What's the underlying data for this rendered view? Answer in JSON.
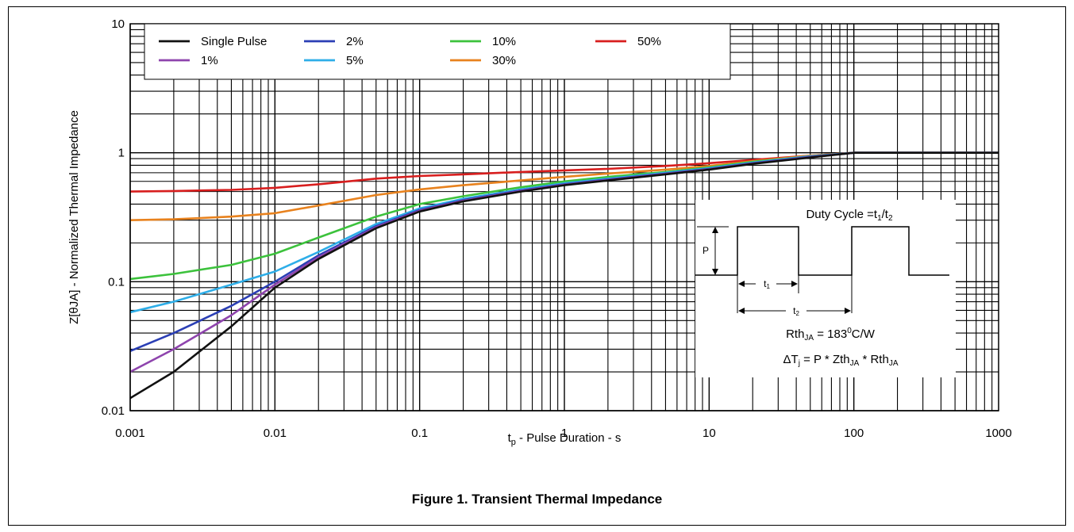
{
  "caption": "Figure 1.  Transient Thermal Impedance",
  "chart_data": {
    "type": "line",
    "x_scale": "log",
    "y_scale": "log",
    "xlim": [
      0.001,
      1000
    ],
    "ylim": [
      0.01,
      10
    ],
    "x_ticks": [
      "0.001",
      "0.01",
      "0.1",
      "1",
      "10",
      "100",
      "1000"
    ],
    "y_ticks": [
      "0.01",
      "0.1",
      "1",
      "10"
    ],
    "xlabel_main": "t",
    "xlabel_sub": "p",
    "xlabel_rest": " - Pulse Duration - s",
    "ylabel": "Z[θJA] - Normalized Thermal Impedance",
    "grid": true,
    "legend_position": "top-left",
    "series": [
      {
        "name": "Single Pulse",
        "color": "#111111",
        "x": [
          0.001,
          0.002,
          0.005,
          0.01,
          0.02,
          0.05,
          0.1,
          0.2,
          0.5,
          1,
          2,
          5,
          10,
          20,
          50,
          100,
          1000
        ],
        "y": [
          0.0125,
          0.02,
          0.045,
          0.09,
          0.15,
          0.26,
          0.35,
          0.42,
          0.5,
          0.56,
          0.61,
          0.68,
          0.74,
          0.82,
          0.92,
          1.0,
          1.0
        ]
      },
      {
        "name": "1%",
        "color": "#8e44ad",
        "x": [
          0.001,
          0.002,
          0.005,
          0.01,
          0.02,
          0.05,
          0.1,
          0.2,
          0.5,
          1,
          2,
          5,
          10,
          20,
          50,
          100,
          1000
        ],
        "y": [
          0.02,
          0.03,
          0.055,
          0.095,
          0.155,
          0.265,
          0.355,
          0.425,
          0.505,
          0.565,
          0.615,
          0.685,
          0.745,
          0.825,
          0.925,
          1.0,
          1.0
        ]
      },
      {
        "name": "2%",
        "color": "#2b3fb5",
        "x": [
          0.001,
          0.002,
          0.005,
          0.01,
          0.02,
          0.05,
          0.1,
          0.2,
          0.5,
          1,
          2,
          5,
          10,
          20,
          50,
          100,
          1000
        ],
        "y": [
          0.029,
          0.04,
          0.065,
          0.1,
          0.16,
          0.27,
          0.36,
          0.43,
          0.51,
          0.57,
          0.62,
          0.69,
          0.75,
          0.83,
          0.93,
          1.0,
          1.0
        ]
      },
      {
        "name": "5%",
        "color": "#2eaee8",
        "x": [
          0.001,
          0.002,
          0.005,
          0.01,
          0.02,
          0.05,
          0.1,
          0.2,
          0.5,
          1,
          2,
          5,
          10,
          20,
          50,
          100,
          1000
        ],
        "y": [
          0.058,
          0.07,
          0.095,
          0.12,
          0.17,
          0.28,
          0.37,
          0.44,
          0.52,
          0.58,
          0.63,
          0.7,
          0.76,
          0.84,
          0.94,
          1.0,
          1.0
        ]
      },
      {
        "name": "10%",
        "color": "#3cc23c",
        "x": [
          0.001,
          0.002,
          0.005,
          0.01,
          0.02,
          0.05,
          0.1,
          0.2,
          0.5,
          1,
          2,
          5,
          10,
          20,
          50,
          100,
          1000
        ],
        "y": [
          0.105,
          0.115,
          0.135,
          0.165,
          0.22,
          0.32,
          0.4,
          0.46,
          0.54,
          0.6,
          0.65,
          0.71,
          0.77,
          0.85,
          0.94,
          1.0,
          1.0
        ]
      },
      {
        "name": "30%",
        "color": "#e8821e",
        "x": [
          0.001,
          0.002,
          0.005,
          0.01,
          0.02,
          0.05,
          0.1,
          0.2,
          0.5,
          1,
          2,
          5,
          10,
          20,
          50,
          100,
          1000
        ],
        "y": [
          0.3,
          0.305,
          0.32,
          0.34,
          0.39,
          0.47,
          0.52,
          0.56,
          0.61,
          0.65,
          0.69,
          0.74,
          0.79,
          0.86,
          0.95,
          1.0,
          1.0
        ]
      },
      {
        "name": "50%",
        "color": "#d81e1e",
        "x": [
          0.001,
          0.002,
          0.005,
          0.01,
          0.02,
          0.05,
          0.1,
          0.2,
          0.5,
          1,
          2,
          5,
          10,
          20,
          50,
          100,
          1000
        ],
        "y": [
          0.5,
          0.505,
          0.515,
          0.535,
          0.57,
          0.63,
          0.66,
          0.68,
          0.71,
          0.73,
          0.75,
          0.79,
          0.83,
          0.88,
          0.95,
          1.0,
          1.0
        ]
      }
    ],
    "inset": {
      "title_main": "Duty Cycle =t",
      "title_s1": "1",
      "title_mid": "/t",
      "title_s2": "2",
      "p_label": "P",
      "t1_main": "t",
      "t1_sub": "1",
      "t2_main": "t",
      "t2_sub": "2",
      "eq1_a": "Rth",
      "eq1_sub": "JA",
      "eq1_b": " = 183",
      "eq1_sup": "0",
      "eq1_c": "C/W",
      "eq2_a": "ΔT",
      "eq2_sub1": "j",
      "eq2_b": " = P * Zth",
      "eq2_sub2": "JA",
      "eq2_c": " * Rth",
      "eq2_sub3": "JA"
    }
  }
}
